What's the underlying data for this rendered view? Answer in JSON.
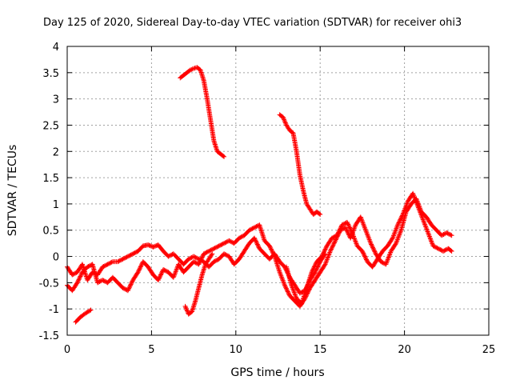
{
  "chart_data": {
    "type": "scatter",
    "title": "Day 125 of 2020, Sidereal Day-to-day VTEC variation (SDTVAR) for receiver ohi3",
    "xlabel": "GPS time / hours",
    "ylabel": "SDTVAR / TECUs",
    "xlim": [
      0,
      25
    ],
    "ylim": [
      -1.5,
      4
    ],
    "xticks": [
      0,
      5,
      10,
      15,
      20,
      25
    ],
    "yticks": [
      -1.5,
      -1,
      -0.5,
      0,
      0.5,
      1,
      1.5,
      2,
      2.5,
      3,
      3.5,
      4
    ],
    "xtick_labels": [
      "0",
      "5",
      "10",
      "15",
      "20",
      "25"
    ],
    "ytick_labels": [
      "-1.5",
      "-1",
      "-0.5",
      "0",
      "0.5",
      "1",
      "1.5",
      "2",
      "2.5",
      "3",
      "3.5",
      "4"
    ],
    "grid": true,
    "marker": "+",
    "color": "#ff0000",
    "series": [
      {
        "name": "low-track-a",
        "points": [
          [
            0,
            -0.2
          ],
          [
            0.3,
            -0.35
          ],
          [
            0.6,
            -0.3
          ],
          [
            0.9,
            -0.15
          ],
          [
            1.2,
            -0.45
          ],
          [
            1.5,
            -0.3
          ],
          [
            1.8,
            -0.35
          ],
          [
            2.1,
            -0.2
          ],
          [
            2.4,
            -0.15
          ],
          [
            2.7,
            -0.1
          ],
          [
            3.0,
            -0.1
          ],
          [
            3.3,
            -0.05
          ],
          [
            3.6,
            0.0
          ],
          [
            3.9,
            0.05
          ],
          [
            4.2,
            0.1
          ],
          [
            4.5,
            0.2
          ],
          [
            4.8,
            0.22
          ],
          [
            5.1,
            0.18
          ],
          [
            5.4,
            0.22
          ],
          [
            5.7,
            0.1
          ],
          [
            6.0,
            0.0
          ],
          [
            6.3,
            0.05
          ],
          [
            6.6,
            -0.05
          ],
          [
            6.9,
            -0.15
          ],
          [
            7.2,
            -0.05
          ],
          [
            7.5,
            0.0
          ],
          [
            7.8,
            -0.05
          ],
          [
            8.1,
            -0.1
          ],
          [
            8.4,
            -0.2
          ],
          [
            8.7,
            -0.1
          ],
          [
            9.0,
            -0.05
          ],
          [
            9.3,
            0.05
          ],
          [
            9.6,
            0.0
          ],
          [
            9.9,
            -0.15
          ],
          [
            10.2,
            -0.05
          ],
          [
            10.5,
            0.1
          ],
          [
            10.8,
            0.25
          ],
          [
            11.1,
            0.35
          ],
          [
            11.4,
            0.15
          ],
          [
            11.7,
            0.05
          ],
          [
            12.0,
            -0.05
          ],
          [
            12.3,
            0.05
          ],
          [
            12.6,
            -0.1
          ],
          [
            12.9,
            -0.2
          ],
          [
            13.2,
            -0.4
          ],
          [
            13.5,
            -0.55
          ],
          [
            13.8,
            -0.7
          ],
          [
            14.1,
            -0.65
          ],
          [
            14.4,
            -0.45
          ],
          [
            14.7,
            -0.3
          ],
          [
            15.0,
            -0.1
          ],
          [
            15.3,
            0.05
          ]
        ]
      },
      {
        "name": "low-track-b",
        "points": [
          [
            0,
            -0.55
          ],
          [
            0.3,
            -0.65
          ],
          [
            0.6,
            -0.5
          ],
          [
            0.9,
            -0.3
          ],
          [
            1.2,
            -0.2
          ],
          [
            1.5,
            -0.15
          ],
          [
            1.8,
            -0.5
          ],
          [
            2.1,
            -0.45
          ],
          [
            2.4,
            -0.5
          ],
          [
            2.7,
            -0.4
          ],
          [
            3.0,
            -0.5
          ],
          [
            3.3,
            -0.6
          ],
          [
            3.6,
            -0.65
          ],
          [
            3.9,
            -0.45
          ],
          [
            4.2,
            -0.3
          ],
          [
            4.5,
            -0.1
          ],
          [
            4.8,
            -0.2
          ],
          [
            5.1,
            -0.35
          ],
          [
            5.4,
            -0.45
          ],
          [
            5.7,
            -0.25
          ],
          [
            6.0,
            -0.3
          ],
          [
            6.3,
            -0.4
          ],
          [
            6.6,
            -0.15
          ],
          [
            6.9,
            -0.3
          ],
          [
            7.2,
            -0.2
          ],
          [
            7.5,
            -0.1
          ],
          [
            7.8,
            -0.15
          ],
          [
            8.1,
            0.05
          ],
          [
            8.4,
            0.1
          ],
          [
            8.7,
            0.15
          ],
          [
            9.0,
            0.2
          ],
          [
            9.3,
            0.25
          ],
          [
            9.6,
            0.3
          ],
          [
            9.9,
            0.25
          ],
          [
            10.2,
            0.35
          ],
          [
            10.5,
            0.4
          ],
          [
            10.8,
            0.5
          ],
          [
            11.1,
            0.55
          ],
          [
            11.4,
            0.6
          ],
          [
            11.7,
            0.3
          ],
          [
            12.0,
            0.2
          ],
          [
            12.3,
            0.0
          ],
          [
            12.6,
            -0.3
          ],
          [
            12.9,
            -0.55
          ],
          [
            13.2,
            -0.75
          ],
          [
            13.5,
            -0.85
          ],
          [
            13.8,
            -0.95
          ],
          [
            14.1,
            -0.8
          ],
          [
            14.4,
            -0.6
          ],
          [
            14.7,
            -0.45
          ],
          [
            15.0,
            -0.3
          ],
          [
            15.3,
            -0.15
          ],
          [
            15.6,
            0.1
          ],
          [
            15.9,
            0.3
          ],
          [
            16.2,
            0.5
          ],
          [
            16.5,
            0.55
          ],
          [
            16.8,
            0.35
          ],
          [
            17.1,
            0.6
          ],
          [
            17.4,
            0.75
          ],
          [
            17.7,
            0.5
          ],
          [
            18.0,
            0.25
          ],
          [
            18.3,
            0.05
          ],
          [
            18.6,
            -0.1
          ],
          [
            18.9,
            -0.15
          ],
          [
            19.2,
            0.1
          ],
          [
            19.5,
            0.25
          ],
          [
            19.8,
            0.5
          ],
          [
            20.1,
            0.85
          ],
          [
            20.4,
            1.0
          ],
          [
            20.7,
            1.1
          ],
          [
            21.0,
            0.85
          ],
          [
            21.3,
            0.75
          ],
          [
            21.6,
            0.6
          ],
          [
            21.9,
            0.5
          ],
          [
            22.2,
            0.4
          ],
          [
            22.5,
            0.45
          ],
          [
            22.8,
            0.4
          ]
        ]
      },
      {
        "name": "low-track-c",
        "points": [
          [
            13.0,
            -0.2
          ],
          [
            13.3,
            -0.55
          ],
          [
            13.6,
            -0.8
          ],
          [
            13.9,
            -0.9
          ],
          [
            14.2,
            -0.6
          ],
          [
            14.5,
            -0.3
          ],
          [
            14.8,
            -0.1
          ],
          [
            15.1,
            0.0
          ],
          [
            15.4,
            0.2
          ],
          [
            15.7,
            0.35
          ],
          [
            16.0,
            0.4
          ],
          [
            16.3,
            0.6
          ],
          [
            16.6,
            0.65
          ],
          [
            16.9,
            0.45
          ],
          [
            17.2,
            0.2
          ],
          [
            17.5,
            0.1
          ],
          [
            17.8,
            -0.1
          ],
          [
            18.1,
            -0.2
          ],
          [
            18.4,
            -0.05
          ],
          [
            18.7,
            0.1
          ],
          [
            19.0,
            0.2
          ],
          [
            19.3,
            0.35
          ],
          [
            19.6,
            0.6
          ],
          [
            19.9,
            0.8
          ],
          [
            20.2,
            1.05
          ],
          [
            20.5,
            1.2
          ],
          [
            20.8,
            0.95
          ],
          [
            21.1,
            0.7
          ],
          [
            21.4,
            0.45
          ],
          [
            21.7,
            0.2
          ],
          [
            22.0,
            0.15
          ],
          [
            22.3,
            0.1
          ],
          [
            22.6,
            0.15
          ],
          [
            22.8,
            0.1
          ]
        ]
      },
      {
        "name": "arc-early",
        "points": [
          [
            0.5,
            -1.25
          ],
          [
            0.8,
            -1.15
          ],
          [
            1.1,
            -1.08
          ],
          [
            1.4,
            -1.02
          ]
        ]
      },
      {
        "name": "arc-dip-7h",
        "points": [
          [
            7.0,
            -0.95
          ],
          [
            7.2,
            -1.1
          ],
          [
            7.4,
            -1.05
          ],
          [
            7.6,
            -0.85
          ],
          [
            7.8,
            -0.6
          ],
          [
            8.0,
            -0.35
          ],
          [
            8.2,
            -0.15
          ],
          [
            8.4,
            -0.05
          ],
          [
            8.6,
            0.05
          ]
        ]
      },
      {
        "name": "arc-high-7h",
        "points": [
          [
            6.7,
            3.4
          ],
          [
            6.9,
            3.45
          ],
          [
            7.1,
            3.5
          ],
          [
            7.3,
            3.55
          ],
          [
            7.5,
            3.58
          ],
          [
            7.7,
            3.6
          ],
          [
            7.9,
            3.55
          ],
          [
            8.1,
            3.35
          ],
          [
            8.3,
            3.0
          ],
          [
            8.5,
            2.6
          ],
          [
            8.7,
            2.2
          ],
          [
            8.9,
            2.0
          ],
          [
            9.1,
            1.95
          ],
          [
            9.3,
            1.9
          ]
        ]
      },
      {
        "name": "arc-high-12h",
        "points": [
          [
            12.6,
            2.7
          ],
          [
            12.8,
            2.65
          ],
          [
            13.0,
            2.5
          ],
          [
            13.2,
            2.4
          ],
          [
            13.4,
            2.35
          ],
          [
            13.6,
            2.0
          ],
          [
            13.8,
            1.55
          ],
          [
            14.0,
            1.25
          ],
          [
            14.2,
            1.0
          ],
          [
            14.4,
            0.9
          ],
          [
            14.6,
            0.8
          ],
          [
            14.8,
            0.85
          ],
          [
            15.0,
            0.8
          ]
        ]
      }
    ]
  }
}
